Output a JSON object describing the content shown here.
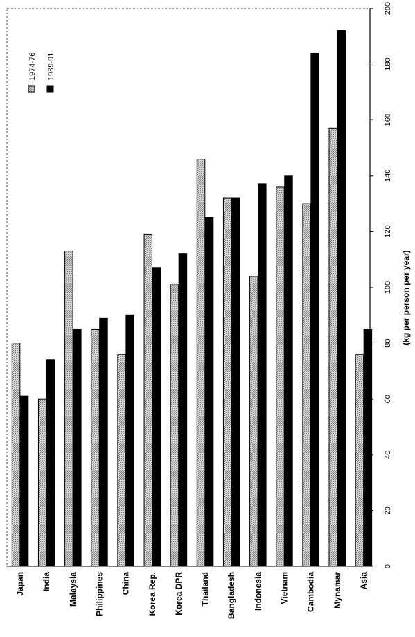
{
  "chart_data": {
    "type": "bar",
    "orientation": "rotated-90",
    "categories": [
      "Japan",
      "India",
      "Malaysia",
      "Philippines",
      "China",
      "Korea Rep.",
      "Korea DPR",
      "Thailand",
      "Bangladesh",
      "Indonesia",
      "Vietnam",
      "Cambodia",
      "Mynamar",
      "Asia"
    ],
    "series": [
      {
        "name": "1974-76",
        "values": [
          80,
          60,
          113,
          85,
          76,
          119,
          101,
          146,
          132,
          104,
          136,
          130,
          157,
          76
        ],
        "color": "#bdbdbd",
        "pattern": "stippled"
      },
      {
        "name": "1989-91",
        "values": [
          61,
          74,
          85,
          89,
          90,
          107,
          112,
          125,
          132,
          137,
          140,
          184,
          192,
          85
        ],
        "color": "#000000",
        "pattern": "solid"
      }
    ],
    "value_axis": {
      "label": "(kg per person per year)",
      "ticks": [
        "0",
        "20",
        "40",
        "60",
        "80",
        "100",
        "120",
        "140",
        "160",
        "180",
        "200"
      ],
      "range": [
        0,
        200
      ]
    },
    "legend": {
      "position": "top-right"
    },
    "grid": false
  }
}
